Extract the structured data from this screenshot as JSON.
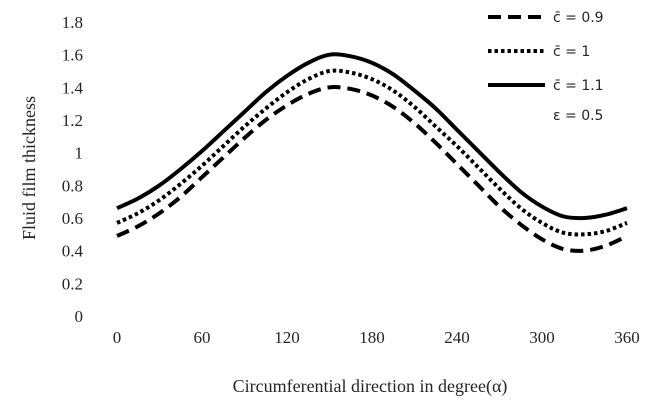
{
  "chart_data": {
    "type": "line",
    "xlabel": "Circumferential direction in degree(α)",
    "ylabel": "Fluid film thickness",
    "xlim": [
      0,
      360
    ],
    "ylim": [
      0,
      1.8
    ],
    "x_ticks": [
      "0",
      "60",
      "120",
      "180",
      "240",
      "300",
      "360"
    ],
    "y_ticks": [
      "0",
      "0.2",
      "0.4",
      "0.6",
      "0.8",
      "1",
      "1.2",
      "1.4",
      "1.6",
      "1.8"
    ],
    "grid": false,
    "legend_position": "top-right",
    "annotation": "ε = 0.5",
    "x": [
      0,
      15,
      30,
      45,
      60,
      75,
      90,
      105,
      120,
      135,
      150,
      165,
      180,
      195,
      210,
      225,
      240,
      255,
      270,
      285,
      300,
      315,
      330,
      345,
      360
    ],
    "series": [
      {
        "name": "c̄ = 0.9",
        "style": "dashed",
        "color": "#000000",
        "values": [
          0.49,
          0.55,
          0.63,
          0.73,
          0.85,
          0.97,
          1.09,
          1.2,
          1.29,
          1.36,
          1.4,
          1.39,
          1.35,
          1.28,
          1.18,
          1.06,
          0.93,
          0.8,
          0.67,
          0.56,
          0.47,
          0.41,
          0.4,
          0.43,
          0.49
        ]
      },
      {
        "name": "c̄ = 1",
        "style": "dotted",
        "color": "#000000",
        "values": [
          0.57,
          0.63,
          0.71,
          0.81,
          0.92,
          1.04,
          1.16,
          1.27,
          1.37,
          1.45,
          1.5,
          1.49,
          1.45,
          1.38,
          1.28,
          1.16,
          1.04,
          0.91,
          0.78,
          0.66,
          0.57,
          0.51,
          0.5,
          0.52,
          0.57
        ]
      },
      {
        "name": "c̄ = 1.1",
        "style": "solid",
        "color": "#000000",
        "values": [
          0.66,
          0.72,
          0.8,
          0.9,
          1.01,
          1.13,
          1.25,
          1.37,
          1.47,
          1.55,
          1.6,
          1.59,
          1.55,
          1.48,
          1.38,
          1.27,
          1.14,
          1.01,
          0.88,
          0.76,
          0.67,
          0.61,
          0.6,
          0.62,
          0.66
        ]
      }
    ]
  }
}
